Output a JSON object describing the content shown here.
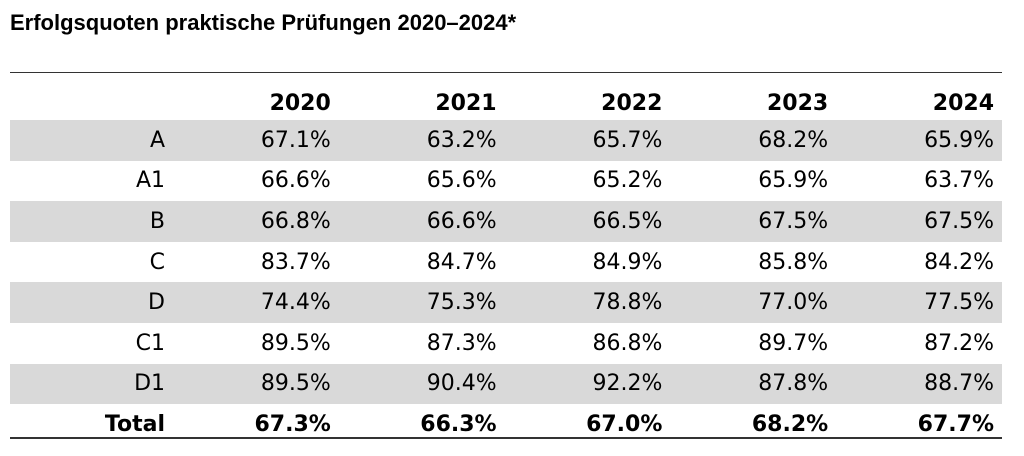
{
  "chart_data": {
    "type": "table",
    "title": "Erfolgsquoten praktische Prüfungen 2020–2024*",
    "columns": [
      "",
      "2020",
      "2021",
      "2022",
      "2023",
      "2024"
    ],
    "rows": [
      {
        "label": "A",
        "values": [
          "67.1%",
          "63.2%",
          "65.7%",
          "68.2%",
          "65.9%"
        ]
      },
      {
        "label": "A1",
        "values": [
          "66.6%",
          "65.6%",
          "65.2%",
          "65.9%",
          "63.7%"
        ]
      },
      {
        "label": "B",
        "values": [
          "66.8%",
          "66.6%",
          "66.5%",
          "67.5%",
          "67.5%"
        ]
      },
      {
        "label": "C",
        "values": [
          "83.7%",
          "84.7%",
          "84.9%",
          "85.8%",
          "84.2%"
        ]
      },
      {
        "label": "D",
        "values": [
          "74.4%",
          "75.3%",
          "78.8%",
          "77.0%",
          "77.5%"
        ]
      },
      {
        "label": "C1",
        "values": [
          "89.5%",
          "87.3%",
          "86.8%",
          "89.7%",
          "87.2%"
        ]
      },
      {
        "label": "D1",
        "values": [
          "89.5%",
          "90.4%",
          "92.2%",
          "87.8%",
          "88.7%"
        ]
      },
      {
        "label": "Total",
        "values": [
          "67.3%",
          "66.3%",
          "67.0%",
          "68.2%",
          "67.7%"
        ]
      }
    ],
    "colors": {
      "stripe": "#d9d9d9",
      "rule": "#333333"
    }
  }
}
